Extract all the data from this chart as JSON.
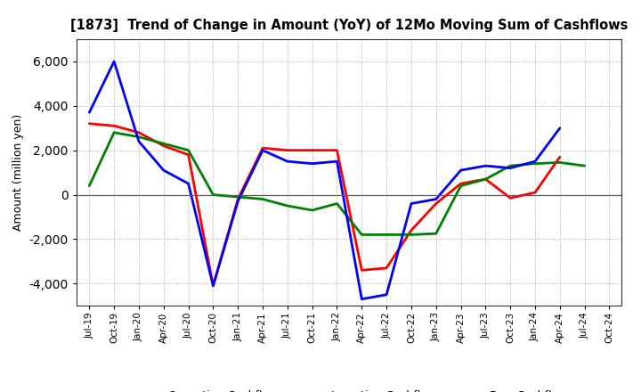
{
  "title": "[1873]  Trend of Change in Amount (YoY) of 12Mo Moving Sum of Cashflows",
  "ylabel": "Amount (million yen)",
  "background_color": "#ffffff",
  "grid_color": "#999999",
  "x_labels": [
    "Jul-19",
    "Oct-19",
    "Jan-20",
    "Apr-20",
    "Jul-20",
    "Oct-20",
    "Jan-21",
    "Apr-21",
    "Jul-21",
    "Oct-21",
    "Jan-22",
    "Apr-22",
    "Jul-22",
    "Oct-22",
    "Jan-23",
    "Apr-23",
    "Jul-23",
    "Oct-23",
    "Jan-24",
    "Apr-24",
    "Jul-24",
    "Oct-24"
  ],
  "operating": [
    3200,
    3100,
    2800,
    2200,
    1800,
    -4100,
    -200,
    2100,
    2000,
    2000,
    2000,
    -3400,
    -3300,
    -1600,
    -400,
    500,
    700,
    -150,
    100,
    1700,
    null,
    null
  ],
  "investing": [
    400,
    2800,
    2600,
    2300,
    2000,
    0,
    -100,
    -200,
    -500,
    -700,
    -400,
    -1800,
    -1800,
    -1800,
    -1750,
    400,
    700,
    1300,
    1400,
    1450,
    1300,
    null
  ],
  "free": [
    3700,
    6000,
    2400,
    1100,
    500,
    -4100,
    -300,
    2000,
    1500,
    1400,
    1500,
    -4700,
    -4500,
    -400,
    -200,
    1100,
    1300,
    1200,
    1500,
    3000,
    null,
    null
  ],
  "ylim": [
    -5000,
    7000
  ],
  "yticks": [
    -4000,
    -2000,
    0,
    2000,
    4000,
    6000
  ],
  "line_colors": {
    "operating": "#ff0000",
    "investing": "#008000",
    "free": "#0000ff"
  },
  "line_width": 2.0
}
